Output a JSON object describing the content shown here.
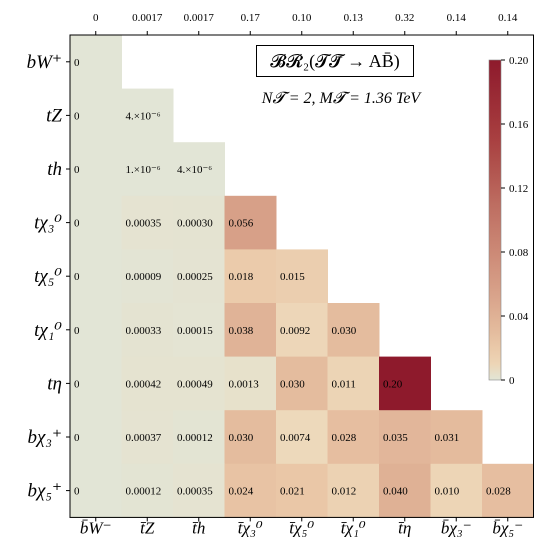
{
  "chart_data": {
    "type": "heatmap",
    "title": "𝓑𝓡₂(𝓣𝓣̄ → AB̄)",
    "subtitle": "N𝓣 = 2, M𝓣 = 1.36 TeV",
    "row_labels": [
      "bW⁺",
      "tZ",
      "th",
      "tχ₃⁰",
      "tχ₅⁰",
      "tχ₁⁰",
      "tη",
      "bχ₃⁺",
      "bχ₅⁺"
    ],
    "col_labels": [
      "b̄W⁻",
      "t̄Z",
      "t̄h",
      "t̄χ₃⁰",
      "t̄χ₅⁰",
      "t̄χ₁⁰",
      "t̄η",
      "b̄χ₃⁻",
      "b̄χ₅⁻"
    ],
    "top_labels": [
      "0",
      "0.0017",
      "0.0017",
      "0.17",
      "0.10",
      "0.13",
      "0.32",
      "0.14",
      "0.14"
    ],
    "cells": [
      [
        "0"
      ],
      [
        "0",
        "4.×10⁻⁶"
      ],
      [
        "0",
        "1.×10⁻⁶",
        "4.×10⁻⁶"
      ],
      [
        "0",
        "0.00035",
        "0.00030",
        "0.056"
      ],
      [
        "0",
        "0.00009",
        "0.00025",
        "0.018",
        "0.015"
      ],
      [
        "0",
        "0.00033",
        "0.00015",
        "0.038",
        "0.0092",
        "0.030"
      ],
      [
        "0",
        "0.00042",
        "0.00049",
        "0.0013",
        "0.030",
        "0.011",
        "0.20"
      ],
      [
        "0",
        "0.00037",
        "0.00012",
        "0.030",
        "0.0074",
        "0.028",
        "0.035",
        "0.031"
      ],
      [
        "0",
        "0.00012",
        "0.00035",
        "0.024",
        "0.021",
        "0.012",
        "0.040",
        "0.010",
        "0.028"
      ]
    ],
    "values": [
      [
        0
      ],
      [
        0,
        4e-06
      ],
      [
        0,
        1e-06,
        4e-06
      ],
      [
        0,
        0.00035,
        0.0003,
        0.056
      ],
      [
        0,
        9e-05,
        0.00025,
        0.018,
        0.015
      ],
      [
        0,
        0.00033,
        0.00015,
        0.038,
        0.0092,
        0.03
      ],
      [
        0,
        0.00042,
        0.00049,
        0.0013,
        0.03,
        0.011,
        0.2
      ],
      [
        0,
        0.00037,
        0.00012,
        0.03,
        0.0074,
        0.028,
        0.035,
        0.031
      ],
      [
        0,
        0.00012,
        0.00035,
        0.024,
        0.021,
        0.012,
        0.04,
        0.01,
        0.028
      ]
    ],
    "colorbar": {
      "range": [
        0,
        0.2
      ],
      "ticks": [
        "0",
        "0.04",
        "0.08",
        "0.12",
        "0.16",
        "0.20"
      ],
      "colors": [
        "#e2e5d6",
        "#eedcbe",
        "#eac8a8",
        "#deae93",
        "#d0917c",
        "#be6f62",
        "#a83f40",
        "#8e1a2c"
      ]
    }
  }
}
